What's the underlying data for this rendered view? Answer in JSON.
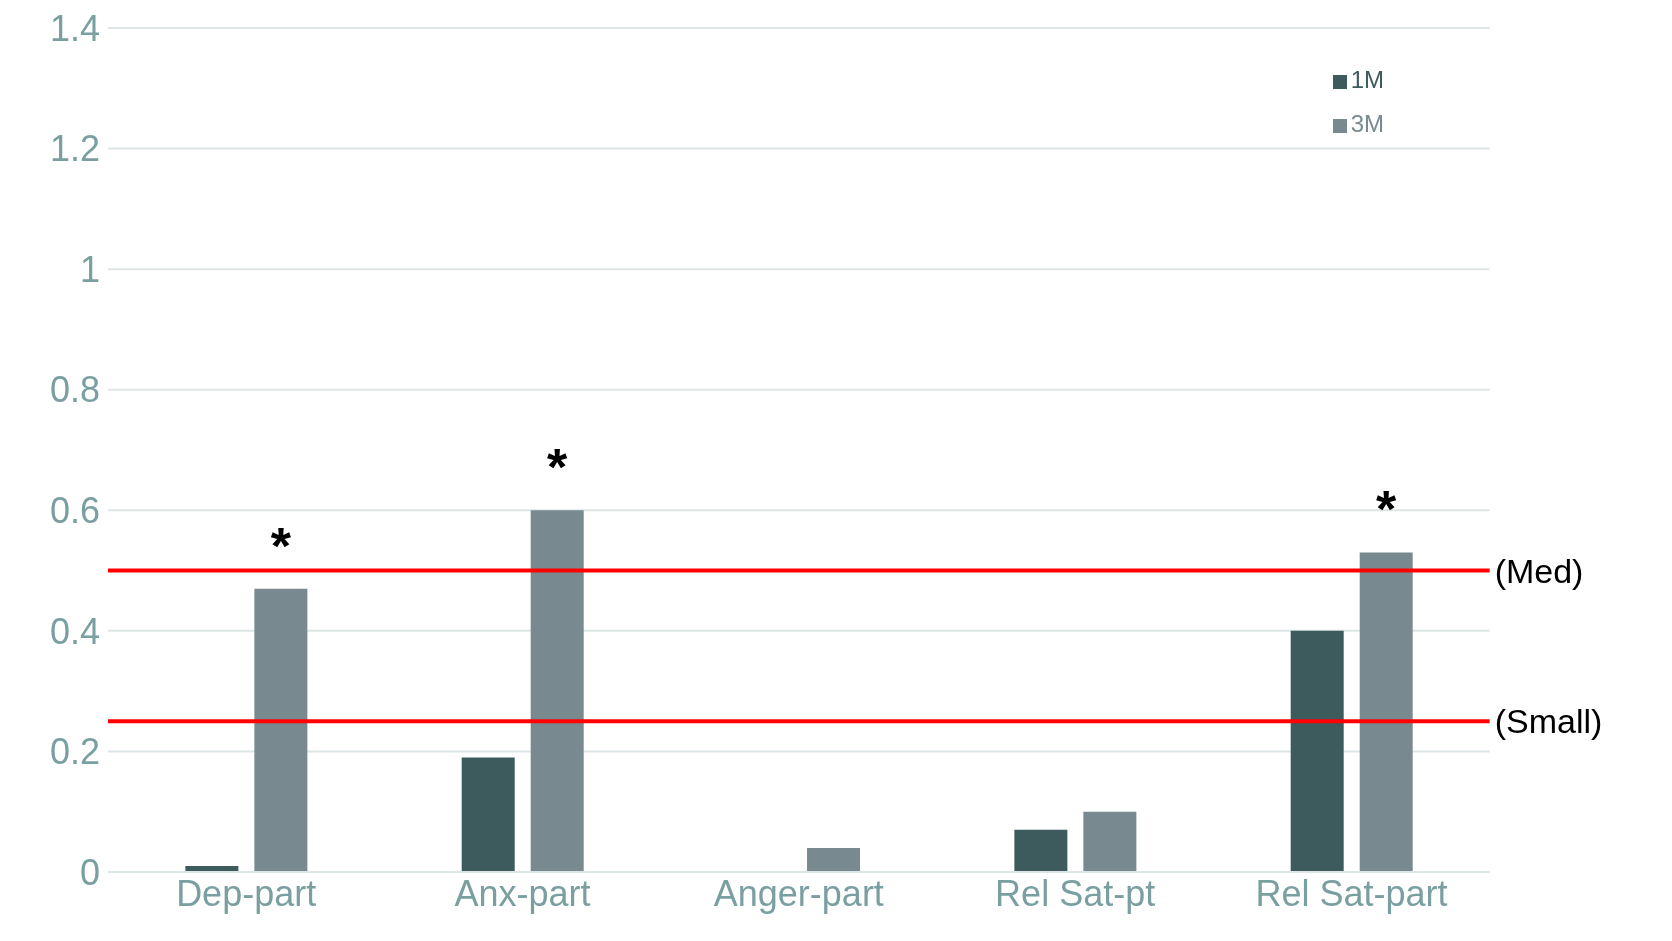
{
  "chart_data": {
    "type": "bar",
    "categories": [
      "Dep-part",
      "Anx-part",
      "Anger-part",
      "Rel Sat-pt",
      "Rel Sat-part"
    ],
    "series": [
      {
        "name": "1M",
        "color": "#3d5a5c",
        "values": [
          0.01,
          0.19,
          0,
          0.07,
          0.4
        ]
      },
      {
        "name": "3M",
        "color": "#788a90",
        "values": [
          0.47,
          0.6,
          0.04,
          0.1,
          0.53
        ],
        "value_labels": [
          "*",
          "*",
          null,
          null,
          "*"
        ]
      }
    ],
    "ylim": [
      0,
      1.4
    ],
    "yticks": [
      0,
      0.2,
      0.4,
      0.6,
      0.8,
      1,
      1.2,
      1.4
    ],
    "grid": "y",
    "legend": "top right",
    "ref_lines": [
      {
        "axis": "y",
        "value": 0.5,
        "label": "(Med)",
        "color": "#ff0000"
      },
      {
        "axis": "y",
        "value": 0.25,
        "label": "(Small)",
        "color": "#ff0000"
      }
    ]
  }
}
